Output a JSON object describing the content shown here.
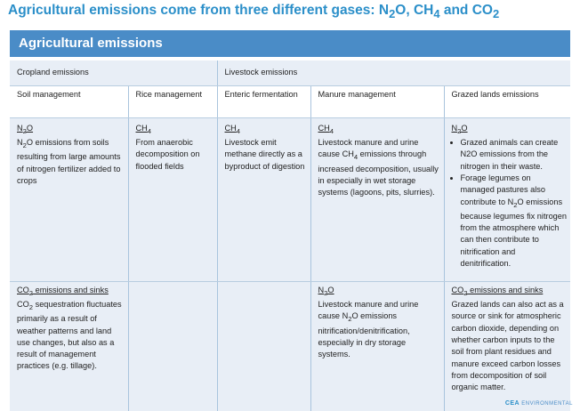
{
  "title": {
    "prefix": "Agricultural emissions come from three different gases: N",
    "sub1": "2",
    "mid1": "O, CH",
    "sub2": "4",
    "mid2": " and CO",
    "sub3": "2"
  },
  "banner": "Agricultural emissions",
  "categories": {
    "cropland": "Cropland emissions",
    "livestock": "Livestock emissions"
  },
  "subheaders": {
    "soil": "Soil management",
    "rice": "Rice management",
    "enteric": "Enteric fermentation",
    "manure": "Manure management",
    "grazed": "Grazed lands emissions"
  },
  "soil_n2o": {
    "heading_pre": "N",
    "heading_sub": "2",
    "heading_post": "O",
    "text_pre": "N",
    "text_sub": "2",
    "text_post": "O emissions from soils resulting from large amounts of nitrogen fertilizer added to crops"
  },
  "rice_ch4": {
    "heading_pre": "CH",
    "heading_sub": "4",
    "text": "From anaerobic decomposition on flooded fields"
  },
  "enteric_ch4": {
    "heading_pre": "CH",
    "heading_sub": "4",
    "text": "Livestock emit methane directly as a byproduct of digestion"
  },
  "manure_ch4": {
    "heading_pre": "CH",
    "heading_sub": "4",
    "text_pre": "Livestock manure and urine cause CH",
    "text_sub": "4",
    "text_post": " emissions through increased decomposition, usually in especially in wet storage systems (lagoons, pits, slurries)."
  },
  "grazed_n2o": {
    "heading_pre": "N",
    "heading_sub": "2",
    "heading_post": "O",
    "bullets": [
      "Grazed animals can create N2O emissions from the nitrogen in their waste.",
      "Forage legumes on managed pastures also contribute to N"
    ],
    "bullet2_sub": "2",
    "bullet2_post": "O emissions because legumes fix nitrogen from the atmosphere which can then contribute to nitrification and denitrification."
  },
  "soil_co2": {
    "heading_pre": "CO",
    "heading_sub": "2",
    "heading_post": " emissions and sinks",
    "text_pre": "CO",
    "text_sub": "2",
    "text_post": " sequestration fluctuates primarily as a result of weather patterns and land use changes, but also as a result of management practices (e.g. tillage)."
  },
  "manure_n2o": {
    "heading_pre": "N",
    "heading_sub": "2",
    "heading_post": "O",
    "text_pre": "Livestock manure and urine cause N",
    "text_sub": "2",
    "text_post": "O emissions nitrification/denitrification, especially in dry storage systems."
  },
  "grazed_co2": {
    "heading_pre": "CO",
    "heading_sub": "2",
    "heading_post": " emissions and sinks",
    "text": "Grazed lands can also act as a source or sink for atmospheric carbon dioxide, depending on whether carbon inputs to the soil from plant residues and manure exceed carbon losses from decomposition of soil organic matter."
  },
  "logo": {
    "brand": "CEA",
    "word": "ENVIRONMENTAL"
  },
  "colors": {
    "title": "#2b8fc9",
    "banner": "#4a8cc7",
    "cell_shade": "#e8eef6"
  }
}
